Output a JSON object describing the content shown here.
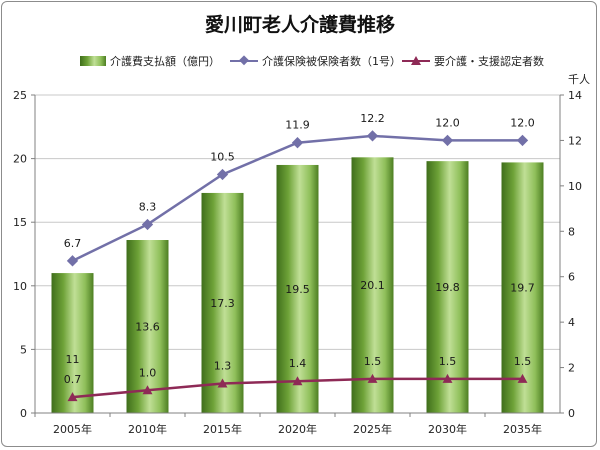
{
  "chart_data": {
    "type": "bar",
    "title": "愛川町老人介護費推移",
    "categories": [
      "2005年",
      "2010年",
      "2015年",
      "2020年",
      "2025年",
      "2030年",
      "2035年"
    ],
    "series": [
      {
        "name": "介護費支払額（億円）",
        "type": "bar",
        "axis": "left",
        "values": [
          11,
          13.6,
          17.3,
          19.5,
          20.1,
          19.8,
          19.7
        ],
        "labels": [
          "11",
          "13.6",
          "17.3",
          "19.5",
          "20.1",
          "19.8",
          "19.7"
        ],
        "color": "#5f9a2c"
      },
      {
        "name": "介護保険被保険者数（1号）",
        "type": "line",
        "axis": "right",
        "values": [
          6.7,
          8.3,
          10.5,
          11.9,
          12.2,
          12.0,
          12.0
        ],
        "labels": [
          "6.7",
          "8.3",
          "10.5",
          "11.9",
          "12.2",
          "12.0",
          "12.0"
        ],
        "color": "#7270a8"
      },
      {
        "name": "要介護・支援認定者数",
        "type": "line",
        "axis": "right",
        "values": [
          0.7,
          1.0,
          1.3,
          1.4,
          1.5,
          1.5,
          1.5
        ],
        "labels": [
          "0.7",
          "1.0",
          "1.3",
          "1.4",
          "1.5",
          "1.5",
          "1.5"
        ],
        "color": "#8e2a56"
      }
    ],
    "y_left": {
      "ylim": [
        0,
        25
      ],
      "ticks": [
        "0",
        "5",
        "10",
        "15",
        "20",
        "25"
      ]
    },
    "y_right": {
      "ylim": [
        0,
        14
      ],
      "ticks": [
        "0",
        "2",
        "4",
        "6",
        "8",
        "10",
        "12",
        "14"
      ],
      "unit": "千人"
    },
    "legend_position": "top",
    "grid": true
  }
}
